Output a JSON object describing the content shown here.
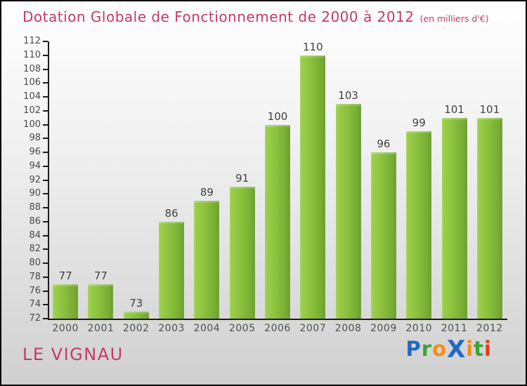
{
  "header": {
    "title": "Dotation Globale de Fonctionnement de 2000 à 2012",
    "subtitle": "(en milliers d'€)",
    "title_color": "#c23a67"
  },
  "footer": {
    "location": "LE VIGNAU",
    "location_color": "#c23a67",
    "logo": {
      "name": "Proxiti",
      "letters": [
        {
          "char": "P",
          "color": "#2268c4"
        },
        {
          "char": "r",
          "color": "#3aa335"
        },
        {
          "char": "o",
          "color": "#f28d16"
        },
        {
          "char": "X",
          "color": "#2268c4",
          "bold_x": true
        },
        {
          "char": "i",
          "color": "#f28d16"
        },
        {
          "char": "t",
          "color": "#3aa335"
        },
        {
          "char": "i",
          "color": "#e03a1e"
        }
      ]
    }
  },
  "chart_data": {
    "type": "bar",
    "title": "Dotation Globale de Fonctionnement de 2000 à 2012",
    "units": "en milliers d'€",
    "categories": [
      "2000",
      "2001",
      "2002",
      "2003",
      "2004",
      "2005",
      "2006",
      "2007",
      "2008",
      "2009",
      "2010",
      "2011",
      "2012"
    ],
    "values": [
      77,
      77,
      73,
      86,
      89,
      91,
      100,
      110,
      103,
      96,
      99,
      101,
      101
    ],
    "xlabel": "",
    "ylabel": "",
    "ylim": [
      72,
      112
    ],
    "ytick_step": 2,
    "grid": false,
    "legend": "none",
    "bar_color_light": "#9fd14f",
    "bar_color_dark": "#6fa52f",
    "axis_color": "#1c1c1c",
    "value_label_color": "#3f3f3f",
    "tick_label_color": "#4a4a4a"
  }
}
